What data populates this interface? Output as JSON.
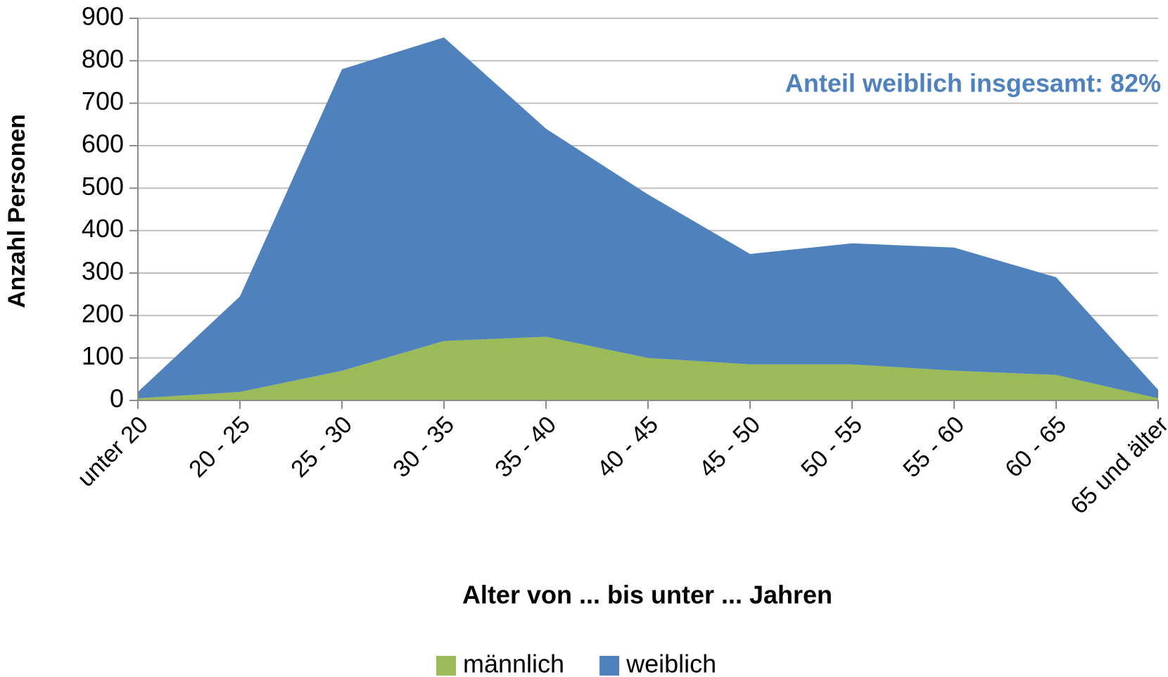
{
  "chart_data": {
    "type": "stacked_area",
    "categories": [
      "unter 20",
      "20 - 25",
      "25 - 30",
      "30 - 35",
      "35 - 40",
      "40 - 45",
      "45 - 50",
      "50 - 55",
      "55 - 60",
      "60 - 65",
      "65 und älter"
    ],
    "series": [
      {
        "name": "männlich",
        "color": "#9bbb59",
        "values": [
          5,
          20,
          70,
          140,
          150,
          100,
          85,
          85,
          70,
          60,
          5
        ]
      },
      {
        "name": "weiblich",
        "color": "#4f81bd",
        "values": [
          15,
          225,
          710,
          715,
          490,
          385,
          260,
          285,
          290,
          230,
          20
        ]
      }
    ],
    "ylim": [
      0,
      900
    ],
    "yticks": [
      0,
      100,
      200,
      300,
      400,
      500,
      600,
      700,
      800,
      900
    ],
    "grid": true,
    "y_label": "Anzahl Personen",
    "x_label": "Alter von ... bis unter ... Jahren",
    "annotation": "Anteil weiblich insgesamt: 82%",
    "legend": "bottom"
  }
}
